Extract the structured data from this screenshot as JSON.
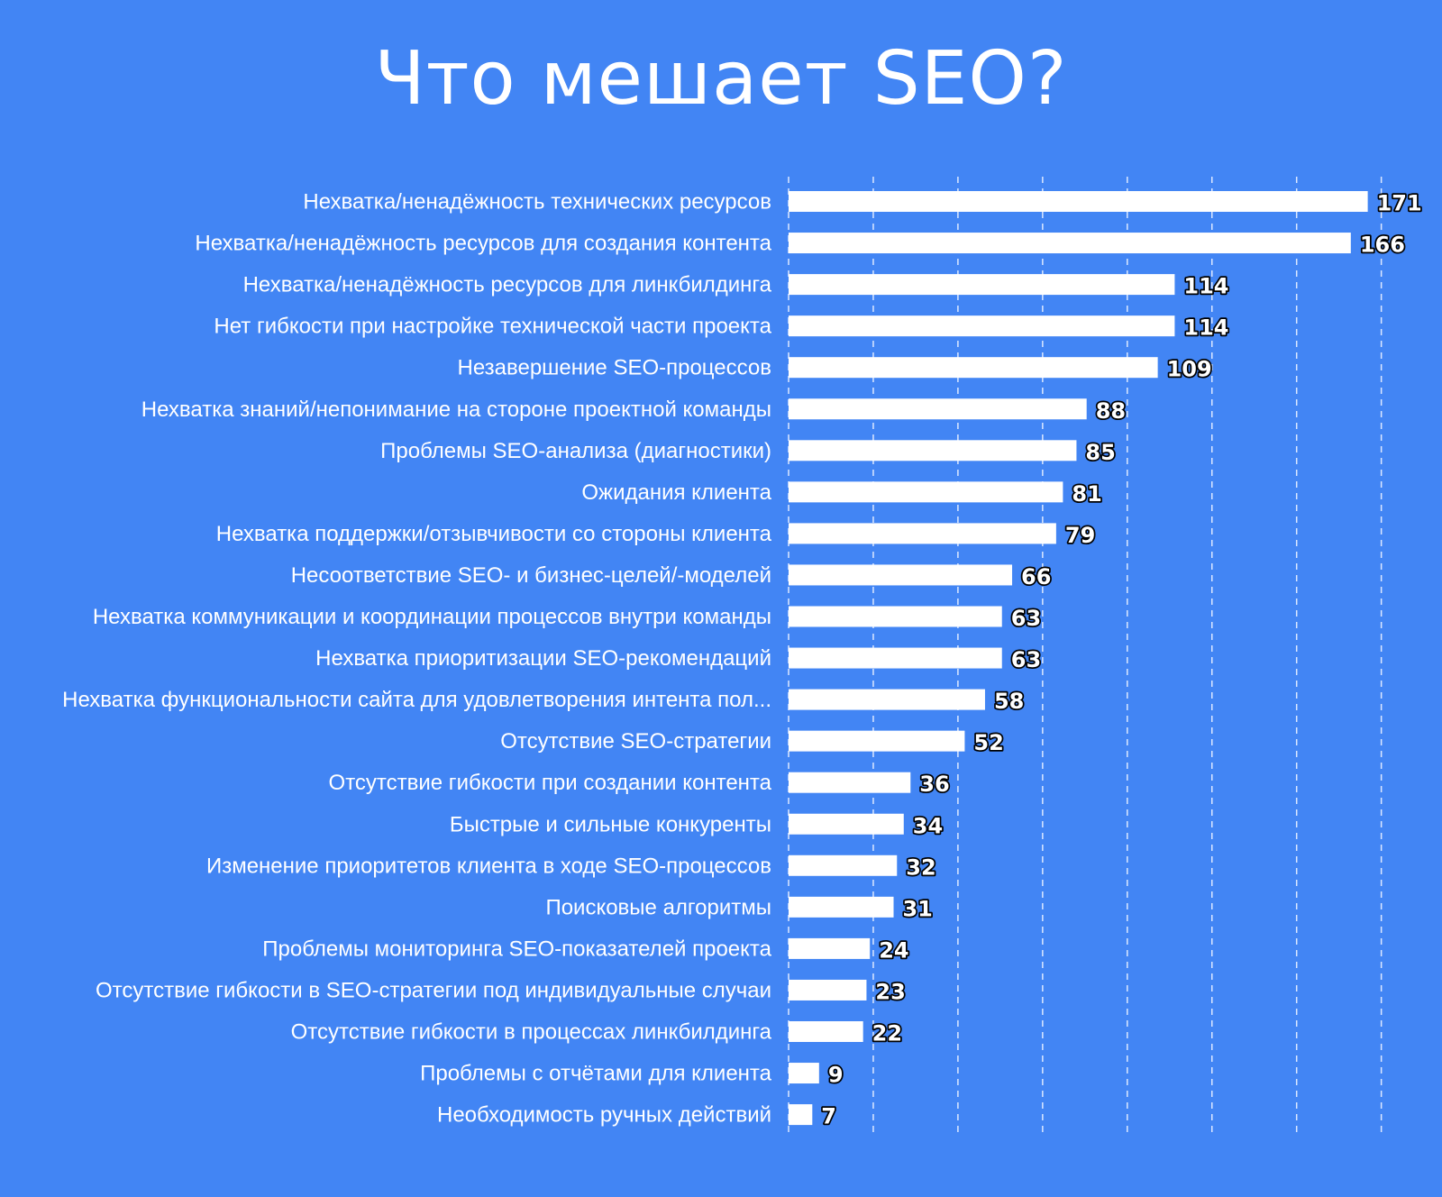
{
  "title": "Что мешает SEO?",
  "colors": {
    "background": "#4285f4",
    "bar": "#ffffff",
    "grid": "#dce8ff",
    "label_text": "#ffffff",
    "value_outline": "#000000"
  },
  "chart_data": {
    "type": "bar",
    "orientation": "horizontal",
    "title": "Что мешает SEO?",
    "xlabel": "",
    "ylabel": "",
    "xlim": [
      0,
      180
    ],
    "grid": true,
    "grid_style": "dashed vertical",
    "legend": "none",
    "data_labels": true,
    "categories": [
      "Нехватка/ненадёжность технических ресурсов",
      "Нехватка/ненадёжность ресурсов для создания контента",
      "Нехватка/ненадёжность ресурсов для линкбилдинга",
      "Нет гибкости при настройке технической части проекта",
      "Незавершение SEO-процессов",
      "Нехватка знаний/непонимание на стороне проектной команды",
      "Проблемы SEO-анализа (диагностики)",
      "Ожидания клиента",
      "Нехватка поддержки/отзывчивости со стороны клиента",
      "Несоответствие SEO- и бизнес-целей/-моделей",
      "Нехватка коммуникации и координации процессов внутри команды",
      "Нехватка приоритизации SEO-рекомендаций",
      "Нехватка функциональности сайта для удовлетворения интента пол...",
      "Отсутствие SEO-стратегии",
      "Отсутствие гибкости при создании контента",
      "Быстрые и сильные конкуренты",
      "Изменение приоритетов клиента в ходе SEO-процессов",
      "Поисковые алгоритмы",
      "Проблемы мониторинга SEO-показателей проекта",
      "Отсутствие гибкости в SEO-стратегии под индивидуальные случаи",
      "Отсутствие гибкости в процессах линкбилдинга",
      "Проблемы с отчётами для клиента",
      "Необходимость ручных действий"
    ],
    "values": [
      171,
      166,
      114,
      114,
      109,
      88,
      85,
      81,
      79,
      66,
      63,
      63,
      58,
      52,
      36,
      34,
      32,
      31,
      24,
      23,
      22,
      9,
      7
    ]
  }
}
